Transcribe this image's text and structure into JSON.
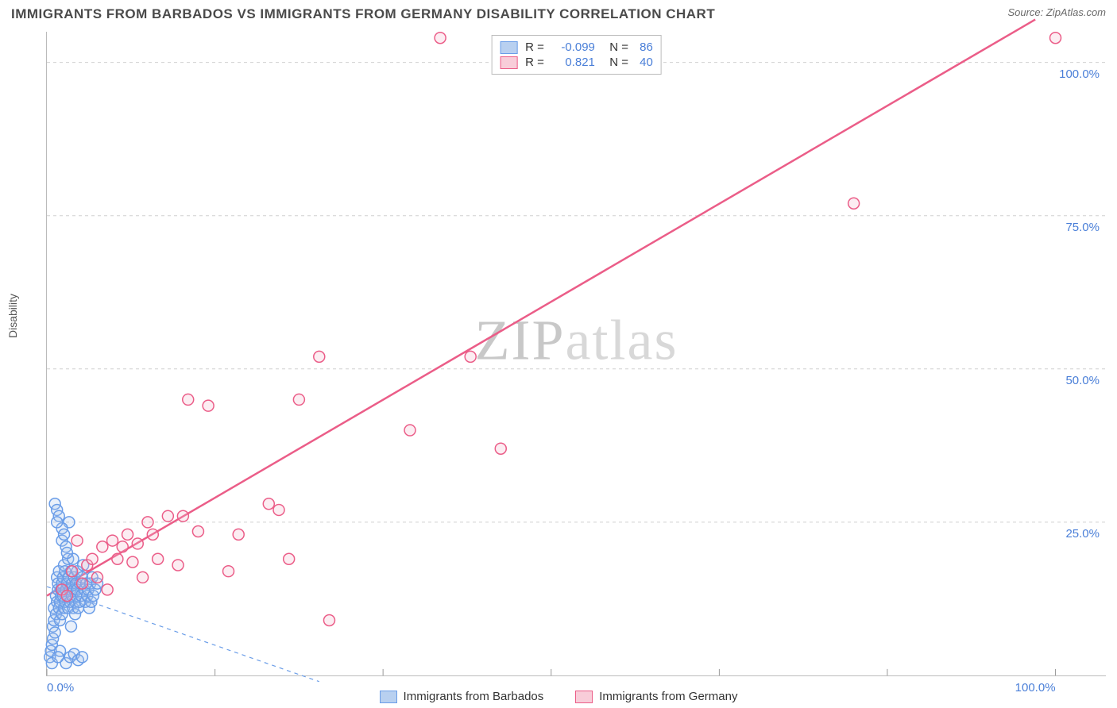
{
  "title": "IMMIGRANTS FROM BARBADOS VS IMMIGRANTS FROM GERMANY DISABILITY CORRELATION CHART",
  "source_label": "Source: ZipAtlas.com",
  "watermark": {
    "zip": "ZIP",
    "atlas": "atlas"
  },
  "ylabel": "Disability",
  "chart": {
    "type": "scatter",
    "xlim": [
      0,
      105
    ],
    "ylim": [
      0,
      105
    ],
    "x_ticks": [
      0,
      16.67,
      33.33,
      50,
      66.67,
      83.33,
      100
    ],
    "y_gridlines": [
      25,
      50,
      75,
      100
    ],
    "x_tick_labels": {
      "0": "0.0%",
      "100": "100.0%"
    },
    "y_tick_labels": {
      "25": "25.0%",
      "50": "50.0%",
      "75": "75.0%",
      "100": "100.0%"
    },
    "grid_color": "#d0d0d0",
    "grid_dash": "4,4",
    "axis_color": "#bbbbbb",
    "marker_radius": 7,
    "marker_stroke_width": 1.5,
    "marker_fill_opacity": 0.25,
    "series": [
      {
        "name": "Immigrants from Barbados",
        "color_stroke": "#6a9de8",
        "color_fill": "#a8c5ed",
        "swatch_fill": "#b8d0f0",
        "swatch_border": "#6a9de8",
        "R": "-0.099",
        "N": "86",
        "line": {
          "x1": 0,
          "y1": 14.5,
          "x2": 27,
          "y2": -1,
          "dash": "5,5",
          "width": 1.2,
          "color": "#6a9de8"
        },
        "points": [
          [
            0.3,
            3
          ],
          [
            0.4,
            4
          ],
          [
            0.5,
            5
          ],
          [
            0.5,
            2
          ],
          [
            0.6,
            6
          ],
          [
            0.6,
            8
          ],
          [
            0.7,
            9
          ],
          [
            0.7,
            11
          ],
          [
            0.8,
            7
          ],
          [
            0.8,
            28
          ],
          [
            0.9,
            10
          ],
          [
            0.9,
            13
          ],
          [
            1.0,
            16
          ],
          [
            1.0,
            12
          ],
          [
            1.0,
            27
          ],
          [
            1.1,
            14
          ],
          [
            1.1,
            15
          ],
          [
            1.2,
            11
          ],
          [
            1.2,
            17
          ],
          [
            1.2,
            26
          ],
          [
            1.3,
            12
          ],
          [
            1.3,
            9
          ],
          [
            1.4,
            14
          ],
          [
            1.4,
            13
          ],
          [
            1.5,
            15
          ],
          [
            1.5,
            10
          ],
          [
            1.5,
            22
          ],
          [
            1.6,
            13
          ],
          [
            1.6,
            16
          ],
          [
            1.7,
            18
          ],
          [
            1.7,
            11
          ],
          [
            1.8,
            12
          ],
          [
            1.8,
            17
          ],
          [
            1.9,
            14
          ],
          [
            1.9,
            21
          ],
          [
            2.0,
            13
          ],
          [
            2.0,
            15
          ],
          [
            2.1,
            11
          ],
          [
            2.1,
            19
          ],
          [
            2.2,
            25
          ],
          [
            2.2,
            16
          ],
          [
            2.3,
            14
          ],
          [
            2.3,
            12
          ],
          [
            2.4,
            8
          ],
          [
            2.4,
            17
          ],
          [
            2.5,
            13
          ],
          [
            2.5,
            15
          ],
          [
            2.6,
            19
          ],
          [
            2.6,
            11
          ],
          [
            2.7,
            14
          ],
          [
            2.7,
            16
          ],
          [
            2.8,
            12
          ],
          [
            2.8,
            10
          ],
          [
            2.9,
            15
          ],
          [
            2.9,
            13
          ],
          [
            3.0,
            17
          ],
          [
            3.0,
            14
          ],
          [
            3.1,
            11
          ],
          [
            3.2,
            12
          ],
          [
            3.3,
            15
          ],
          [
            3.4,
            13
          ],
          [
            3.5,
            16
          ],
          [
            3.6,
            18
          ],
          [
            3.7,
            14
          ],
          [
            3.8,
            12
          ],
          [
            3.9,
            15
          ],
          [
            4.0,
            13
          ],
          [
            4.1,
            14
          ],
          [
            4.2,
            11
          ],
          [
            4.3,
            15
          ],
          [
            4.4,
            12
          ],
          [
            4.5,
            16
          ],
          [
            4.6,
            13
          ],
          [
            4.8,
            14
          ],
          [
            5.0,
            15
          ],
          [
            1.9,
            2
          ],
          [
            2.3,
            3
          ],
          [
            2.7,
            3.5
          ],
          [
            3.1,
            2.5
          ],
          [
            3.5,
            3
          ],
          [
            1.5,
            24
          ],
          [
            1.0,
            25
          ],
          [
            1.7,
            23
          ],
          [
            2.0,
            20
          ],
          [
            1.3,
            4
          ],
          [
            1.1,
            3
          ]
        ]
      },
      {
        "name": "Immigrants from Germany",
        "color_stroke": "#eb5d88",
        "color_fill": "#f5b8ca",
        "swatch_fill": "#f8cdd9",
        "swatch_border": "#eb5d88",
        "R": "0.821",
        "N": "40",
        "line": {
          "x1": 0,
          "y1": 13,
          "x2": 98,
          "y2": 107,
          "dash": null,
          "width": 2.5,
          "color": "#eb5d88"
        },
        "points": [
          [
            1.5,
            14
          ],
          [
            2,
            13
          ],
          [
            2.5,
            17
          ],
          [
            3,
            22
          ],
          [
            3.5,
            15
          ],
          [
            4,
            18
          ],
          [
            4.5,
            19
          ],
          [
            5,
            16
          ],
          [
            5.5,
            21
          ],
          [
            6,
            14
          ],
          [
            6.5,
            22
          ],
          [
            7,
            19
          ],
          [
            7.5,
            21
          ],
          [
            8,
            23
          ],
          [
            8.5,
            18.5
          ],
          [
            9,
            21.5
          ],
          [
            9.5,
            16
          ],
          [
            10,
            25
          ],
          [
            10.5,
            23
          ],
          [
            11,
            19
          ],
          [
            12,
            26
          ],
          [
            13,
            18
          ],
          [
            13.5,
            26
          ],
          [
            14,
            45
          ],
          [
            15,
            23.5
          ],
          [
            16,
            44
          ],
          [
            18,
            17
          ],
          [
            19,
            23
          ],
          [
            22,
            28
          ],
          [
            23,
            27
          ],
          [
            24,
            19
          ],
          [
            25,
            45
          ],
          [
            27,
            52
          ],
          [
            28,
            9
          ],
          [
            36,
            40
          ],
          [
            39,
            104
          ],
          [
            42,
            52
          ],
          [
            45,
            37
          ],
          [
            80,
            77
          ],
          [
            100,
            104
          ]
        ]
      }
    ]
  },
  "legend_box": {
    "R_label": "R",
    "N_label": "N",
    "eq": "="
  },
  "bottom_legend": {
    "items": [
      {
        "label": "Immigrants from Barbados",
        "series": 0
      },
      {
        "label": "Immigrants from Germany",
        "series": 1
      }
    ]
  }
}
